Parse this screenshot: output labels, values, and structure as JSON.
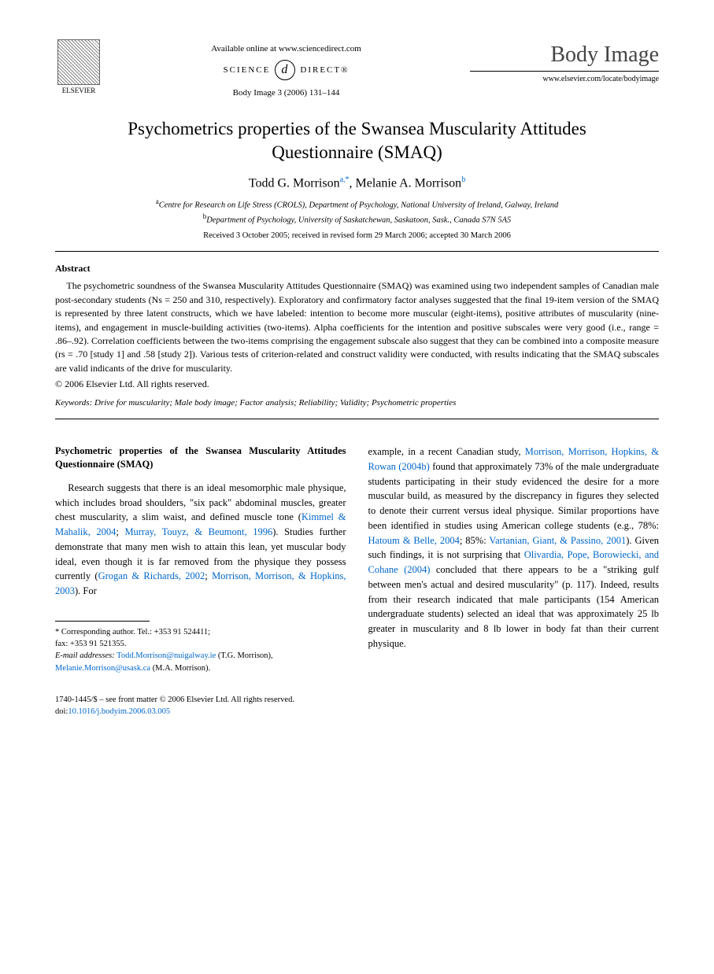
{
  "header": {
    "publisher": "ELSEVIER",
    "availability": "Available online at www.sciencedirect.com",
    "sd_left": "SCIENCE",
    "sd_right": "DIRECT®",
    "sd_at": "d",
    "journal_ref": "Body Image 3 (2006) 131–144",
    "journal_logo": "Body Image",
    "journal_url": "www.elsevier.com/locate/bodyimage"
  },
  "title": "Psychometrics properties of the Swansea Muscularity Attitudes Questionnaire (SMAQ)",
  "authors": {
    "a1_name": "Todd G. Morrison",
    "a1_sup": "a,",
    "a1_star": "*",
    "sep": ", ",
    "a2_name": "Melanie A. Morrison",
    "a2_sup": "b"
  },
  "affiliations": {
    "a_sup": "a",
    "a_text": "Centre for Research on Life Stress (CROLS), Department of Psychology, National University of Ireland, Galway, Ireland",
    "b_sup": "b",
    "b_text": "Department of Psychology, University of Saskatchewan, Saskatoon, Sask., Canada S7N 5A5"
  },
  "dates": "Received 3 October 2005; received in revised form 29 March 2006; accepted 30 March 2006",
  "abstract": {
    "heading": "Abstract",
    "body": "The psychometric soundness of the Swansea Muscularity Attitudes Questionnaire (SMAQ) was examined using two independent samples of Canadian male post-secondary students (Ns = 250 and 310, respectively). Exploratory and confirmatory factor analyses suggested that the final 19-item version of the SMAQ is represented by three latent constructs, which we have labeled: intention to become more muscular (eight-items), positive attributes of muscularity (nine-items), and engagement in muscle-building activities (two-items). Alpha coefficients for the intention and positive subscales were very good (i.e., range = .86–.92). Correlation coefficients between the two-items comprising the engagement subscale also suggest that they can be combined into a composite measure (rs = .70 [study 1] and .58 [study 2]). Various tests of criterion-related and construct validity were conducted, with results indicating that the SMAQ subscales are valid indicants of the drive for muscularity.",
    "copyright": "© 2006 Elsevier Ltd. All rights reserved."
  },
  "keywords": {
    "label": "Keywords:",
    "text": " Drive for muscularity; Male body image; Factor analysis; Reliability; Validity; Psychometric properties"
  },
  "body": {
    "section_heading": "Psychometric properties of the Swansea Muscularity Attitudes Questionnaire (SMAQ)",
    "col1_pre": "Research suggests that there is an ideal mesomorphic male physique, which includes broad shoulders, \"six pack\" abdominal muscles, greater chest muscularity, a slim waist, and defined muscle tone (",
    "col1_cite1": "Kimmel & Mahalik, 2004",
    "col1_mid1": "; ",
    "col1_cite2": "Murray, Touyz, & Beumont, 1996",
    "col1_mid2": "). Studies further demonstrate that many men wish to attain this lean, yet muscular body ideal, even though it is far removed from the physique they possess currently (",
    "col1_cite3": "Grogan & Richards, 2002",
    "col1_mid3": "; ",
    "col1_cite4": "Morrison, Morrison, & Hopkins, 2003",
    "col1_post": "). For",
    "col2_pre": "example, in a recent Canadian study, ",
    "col2_cite1": "Morrison, Morrison, Hopkins, & Rowan (2004b)",
    "col2_mid1": " found that approximately 73% of the male undergraduate students participating in their study evidenced the desire for a more muscular build, as measured by the discrepancy in figures they selected to denote their current versus ideal physique. Similar proportions have been identified in studies using American college students (e.g., 78%: ",
    "col2_cite2": "Hatoum & Belle, 2004",
    "col2_mid2": "; 85%: ",
    "col2_cite3": "Vartanian, Giant, & Passino, 2001",
    "col2_mid3": "). Given such findings, it is not surprising that ",
    "col2_cite4": "Olivardia, Pope, Borowiecki, and Cohane (2004)",
    "col2_post": " concluded that there appears to be a \"striking gulf between men's actual and desired muscularity\" (p. 117). Indeed, results from their research indicated that male participants (154 American undergraduate students) selected an ideal that was approximately 25 lb greater in muscularity and 8 lb lower in body fat than their current physique."
  },
  "footnotes": {
    "corr_label": "* Corresponding author. Tel.: +353 91 524411;",
    "corr_fax": "fax: +353 91 521355.",
    "email_label": "E-mail addresses:",
    "email1": "Todd.Morrison@nuigalway.ie",
    "email1_who": " (T.G. Morrison),",
    "email2": "Melanie.Morrison@usask.ca",
    "email2_who": " (M.A. Morrison)."
  },
  "footer": {
    "line1": "1740-1445/$ – see front matter © 2006 Elsevier Ltd. All rights reserved.",
    "doi_label": "doi:",
    "doi": "10.1016/j.bodyim.2006.03.005"
  },
  "colors": {
    "link": "#0066cc",
    "text": "#000000",
    "bg": "#ffffff"
  }
}
